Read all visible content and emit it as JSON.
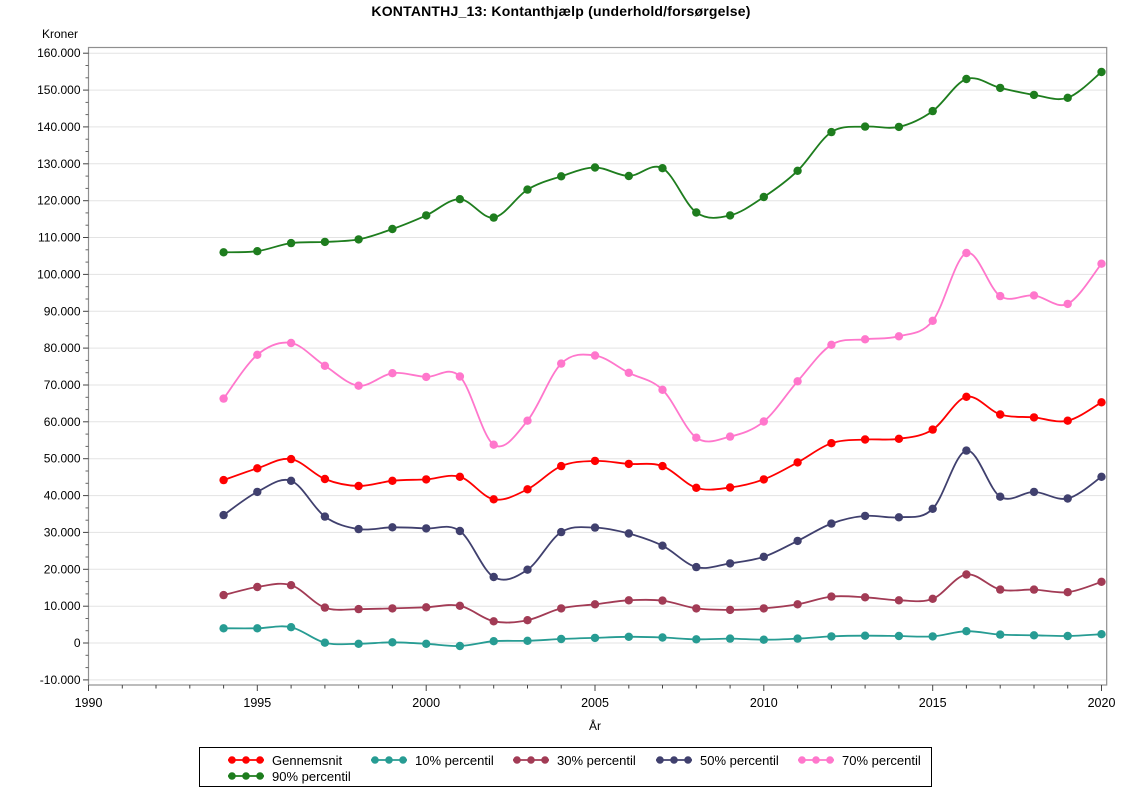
{
  "title": "KONTANTHJ_13: Kontanthjælp (underhold/forsørgelse)",
  "y_axis": {
    "unit": "Kroner",
    "tick_labels": [
      "160.000",
      "150.000",
      "140.000",
      "130.000",
      "120.000",
      "110.000",
      "100.000",
      "90.000",
      "80.000",
      "70.000",
      "60.000",
      "50.000",
      "40.000",
      "30.000",
      "20.000",
      "10.000",
      "0",
      "-10.000"
    ],
    "tick_values": [
      160000,
      150000,
      140000,
      130000,
      120000,
      110000,
      100000,
      90000,
      80000,
      70000,
      60000,
      50000,
      40000,
      30000,
      20000,
      10000,
      0,
      -10000
    ]
  },
  "x_axis": {
    "label": "År",
    "tick_labels": [
      "1990",
      "1995",
      "2000",
      "2005",
      "2010",
      "2015",
      "2020"
    ],
    "tick_values": [
      1990,
      1995,
      2000,
      2005,
      2010,
      2015,
      2020
    ]
  },
  "legend": {
    "entries": [
      {
        "label": "Gennemsnit",
        "color": "#FF0000"
      },
      {
        "label": "10% percentil",
        "color": "#279C93"
      },
      {
        "label": "30% percentil",
        "color": "#A23B55"
      },
      {
        "label": "50% percentil",
        "color": "#40406E"
      },
      {
        "label": "70% percentil",
        "color": "#FF77CC"
      },
      {
        "label": "90% percentil",
        "color": "#1E7D1E"
      }
    ]
  },
  "chart_data": {
    "type": "line",
    "title": "KONTANTHJ_13: Kontanthjælp (underhold/forsørgelse)",
    "xlabel": "År",
    "ylabel": "Kroner",
    "xlim": [
      1990,
      2020
    ],
    "ylim": [
      -10000,
      160000
    ],
    "grid": "horizontal",
    "legend_position": "bottom",
    "marker": "circle",
    "line_style": "smooth",
    "x": [
      1994,
      1995,
      1996,
      1997,
      1998,
      1999,
      2000,
      2001,
      2002,
      2003,
      2004,
      2005,
      2006,
      2007,
      2008,
      2009,
      2010,
      2011,
      2012,
      2013,
      2014,
      2015,
      2016,
      2017,
      2018,
      2019,
      2020
    ],
    "series": [
      {
        "name": "Gennemsnit",
        "color": "#FF0000",
        "values": [
          44200,
          47400,
          49900,
          44500,
          42600,
          44000,
          44400,
          45100,
          39000,
          41700,
          48000,
          49400,
          48600,
          48000,
          42100,
          42200,
          44400,
          49000,
          54200,
          55200,
          55400,
          57900,
          66800,
          62000,
          61200,
          60300,
          65300
        ]
      },
      {
        "name": "10% percentil",
        "color": "#279C93",
        "values": [
          4000,
          4000,
          4300,
          100,
          -200,
          200,
          -200,
          -800,
          500,
          600,
          1100,
          1400,
          1700,
          1500,
          1000,
          1200,
          900,
          1200,
          1800,
          2000,
          1900,
          1800,
          3200,
          2300,
          2100,
          1900,
          2400
        ]
      },
      {
        "name": "30% percentil",
        "color": "#A23B55",
        "values": [
          13000,
          15200,
          15700,
          9600,
          9200,
          9400,
          9700,
          10100,
          5900,
          6200,
          9400,
          10500,
          11600,
          11500,
          9400,
          9000,
          9400,
          10500,
          12600,
          12400,
          11600,
          12000,
          18600,
          14500,
          14500,
          13800,
          16600
        ]
      },
      {
        "name": "50% percentil",
        "color": "#40406E",
        "values": [
          34700,
          41000,
          44000,
          34300,
          30900,
          31400,
          31100,
          30400,
          17900,
          19900,
          30100,
          31300,
          29700,
          26400,
          20600,
          21600,
          23400,
          27700,
          32400,
          34500,
          34100,
          36400,
          52200,
          39700,
          41000,
          39200,
          45100
        ]
      },
      {
        "name": "70% percentil",
        "color": "#FF77CC",
        "values": [
          66300,
          78200,
          81400,
          75200,
          69800,
          73200,
          72200,
          72300,
          53800,
          60300,
          75800,
          78000,
          73300,
          68700,
          55700,
          56000,
          60100,
          71000,
          80900,
          82400,
          83200,
          87400,
          105800,
          94100,
          94300,
          92000,
          102900
        ]
      },
      {
        "name": "90% percentil",
        "color": "#1E7D1E",
        "values": [
          106000,
          106300,
          108500,
          108800,
          109500,
          112300,
          116000,
          120400,
          115400,
          123000,
          126600,
          129000,
          126700,
          128800,
          116800,
          116000,
          121000,
          128100,
          138600,
          140100,
          140000,
          144300,
          153000,
          150600,
          148700,
          147900,
          154900
        ]
      }
    ]
  }
}
